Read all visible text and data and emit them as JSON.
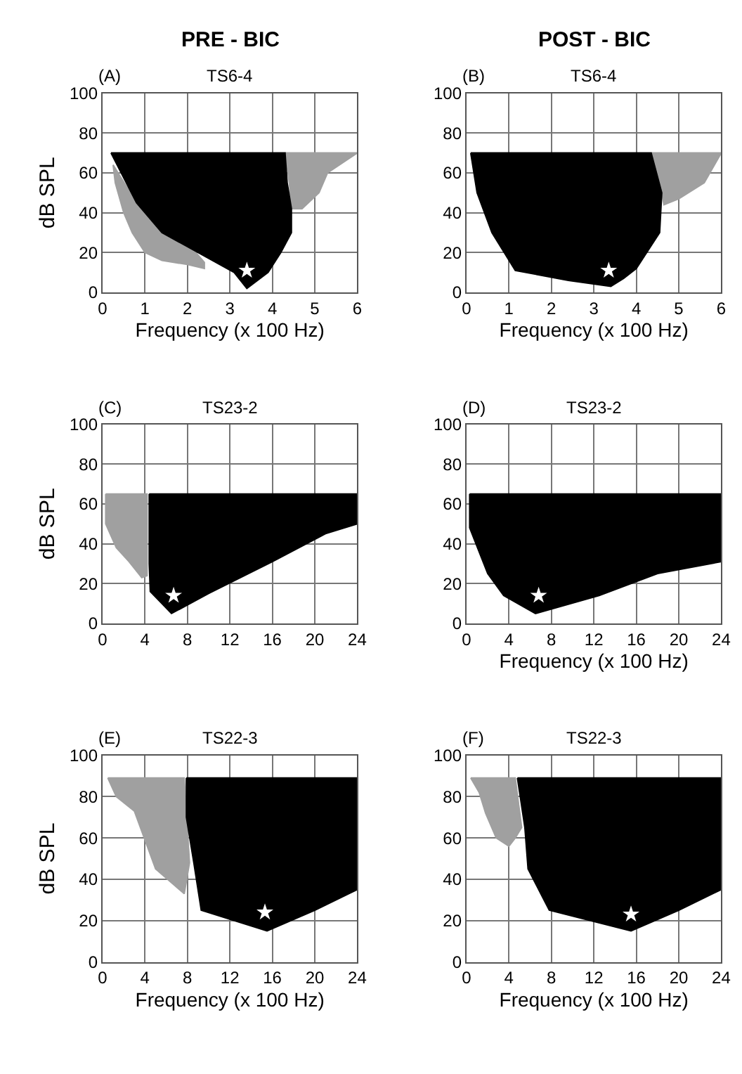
{
  "chart_data": [
    {
      "type": "area",
      "title": "TS6-4",
      "annotations": [
        "PRE - BIC",
        "(A)"
      ],
      "xlabel": "Frequency (x 100 Hz)",
      "ylabel": "dB SPL",
      "xlim": [
        0,
        6
      ],
      "xticks": [
        0,
        1,
        2,
        3,
        4,
        5,
        6
      ],
      "ylim": [
        0,
        100
      ],
      "yticks": [
        0,
        20,
        40,
        60,
        80,
        100
      ],
      "grid": true,
      "series": [
        {
          "color": "#a0a0a0",
          "x": [
            0.25,
            0.3,
            0.5,
            0.7,
            1.0,
            1.4,
            2.0,
            2.4,
            2.4,
            2.2,
            1.4,
            1.0,
            0.6,
            0.25
          ],
          "values": [
            64,
            55,
            40,
            30,
            20,
            16,
            14,
            12,
            15,
            20,
            30,
            40,
            52,
            64
          ]
        },
        {
          "color": "#a0a0a0",
          "x": [
            4.3,
            6.0,
            5.3,
            5.1,
            4.7,
            4.45,
            4.4,
            4.3
          ],
          "values": [
            70,
            70,
            60,
            50,
            42,
            42,
            55,
            70
          ]
        },
        {
          "color": "#000000",
          "x": [
            0.2,
            4.3,
            4.35,
            4.45,
            4.45,
            4.2,
            3.9,
            3.4,
            3.1,
            1.4,
            0.8,
            0.2
          ],
          "values": [
            70,
            70,
            55,
            42,
            30,
            20,
            10,
            2,
            10,
            30,
            45,
            70
          ]
        },
        {
          "type": "scatter",
          "marker": "star",
          "color": "#ffffff",
          "x": [
            3.4
          ],
          "values": [
            11
          ]
        }
      ]
    },
    {
      "type": "area",
      "title": "TS6-4",
      "annotations": [
        "POST - BIC",
        "(B)"
      ],
      "xlabel": "Frequency (x 100 Hz)",
      "xlim": [
        0,
        6
      ],
      "xticks": [
        0,
        1,
        2,
        3,
        4,
        5,
        6
      ],
      "ylim": [
        0,
        100
      ],
      "yticks": [
        0,
        20,
        40,
        60,
        80,
        100
      ],
      "grid": true,
      "series": [
        {
          "color": "#a0a0a0",
          "x": [
            4.35,
            6.0,
            5.6,
            5.0,
            4.65,
            4.6,
            4.35
          ],
          "values": [
            70,
            70,
            55,
            47,
            44,
            50,
            70
          ]
        },
        {
          "color": "#000000",
          "x": [
            0.1,
            4.35,
            4.6,
            4.55,
            4.0,
            3.7,
            3.4,
            2.4,
            1.15,
            0.6,
            0.25,
            0.1
          ],
          "values": [
            70,
            70,
            50,
            30,
            12,
            7,
            3,
            6,
            11,
            30,
            50,
            70
          ]
        },
        {
          "type": "scatter",
          "marker": "star",
          "color": "#ffffff",
          "x": [
            3.35
          ],
          "values": [
            11
          ]
        }
      ]
    },
    {
      "type": "area",
      "title": "TS23-2",
      "annotations": [
        "(C)"
      ],
      "ylabel": "dB SPL",
      "xlim": [
        0,
        24
      ],
      "xticks": [
        0,
        4,
        8,
        12,
        16,
        20,
        24
      ],
      "ylim": [
        0,
        100
      ],
      "yticks": [
        0,
        20,
        40,
        60,
        80,
        100
      ],
      "grid": true,
      "series": [
        {
          "color": "#a0a0a0",
          "x": [
            0.3,
            4.2,
            4.2,
            3.7,
            2.5,
            1.3,
            0.3,
            0.3
          ],
          "values": [
            65,
            65,
            24,
            23,
            31,
            38,
            50,
            65
          ]
        },
        {
          "color": "#000000",
          "x": [
            4.4,
            24,
            24,
            21,
            16,
            10,
            6.5,
            4.5,
            4.4,
            4.4
          ],
          "values": [
            65,
            65,
            50,
            45,
            31,
            15,
            5,
            16,
            30,
            65
          ]
        },
        {
          "type": "scatter",
          "marker": "star",
          "color": "#ffffff",
          "x": [
            6.7
          ],
          "values": [
            14
          ]
        }
      ]
    },
    {
      "type": "area",
      "title": "TS23-2",
      "annotations": [
        "(D)"
      ],
      "xlabel": "Frequency (x 100 Hz)",
      "xlim": [
        0,
        24
      ],
      "xticks": [
        0,
        4,
        8,
        12,
        16,
        20,
        24
      ],
      "ylim": [
        0,
        100
      ],
      "yticks": [
        0,
        20,
        40,
        60,
        80,
        100
      ],
      "grid": true,
      "series": [
        {
          "color": "#000000",
          "x": [
            0.3,
            24,
            24,
            18,
            12.5,
            6.5,
            3.5,
            2,
            0.3,
            0.3
          ],
          "values": [
            65,
            65,
            31,
            25,
            14,
            5,
            14,
            25,
            48,
            65
          ]
        },
        {
          "type": "scatter",
          "marker": "star",
          "color": "#ffffff",
          "x": [
            6.8
          ],
          "values": [
            14
          ]
        }
      ]
    },
    {
      "type": "area",
      "title": "TS22-3",
      "annotations": [
        "(E)"
      ],
      "xlabel": "Frequency (x 100 Hz)",
      "ylabel": "dB SPL",
      "xlim": [
        0,
        24
      ],
      "xticks": [
        0,
        4,
        8,
        12,
        16,
        20,
        24
      ],
      "ylim": [
        0,
        100
      ],
      "yticks": [
        0,
        20,
        40,
        60,
        80,
        100
      ],
      "grid": true,
      "series": [
        {
          "color": "#a0a0a0",
          "x": [
            0.5,
            7.7,
            8.2,
            7.7,
            5,
            3,
            1.3,
            0.5
          ],
          "values": [
            89,
            89,
            48,
            33,
            45,
            73,
            80,
            89
          ]
        },
        {
          "color": "#000000",
          "x": [
            7.9,
            24,
            24,
            20,
            15.5,
            9.3,
            8.6,
            7.9,
            7.9
          ],
          "values": [
            89,
            89,
            35,
            25,
            15,
            25,
            48,
            70,
            89
          ]
        },
        {
          "type": "scatter",
          "marker": "star",
          "color": "#ffffff",
          "x": [
            15.3
          ],
          "values": [
            24
          ]
        }
      ]
    },
    {
      "type": "area",
      "title": "TS22-3",
      "annotations": [
        "(F)"
      ],
      "xlabel": "Frequency (x 100 Hz)",
      "xlim": [
        0,
        24
      ],
      "xticks": [
        0,
        4,
        8,
        12,
        16,
        20,
        24
      ],
      "ylim": [
        0,
        100
      ],
      "yticks": [
        0,
        20,
        40,
        60,
        80,
        100
      ],
      "grid": true,
      "series": [
        {
          "color": "#a0a0a0",
          "x": [
            0.4,
            4.6,
            5.2,
            4.6,
            4.0,
            2.8,
            1.8,
            1.2,
            0.4
          ],
          "values": [
            89,
            89,
            65,
            60,
            56,
            60,
            72,
            82,
            89
          ]
        },
        {
          "color": "#000000",
          "x": [
            4.8,
            24,
            24,
            20,
            15.5,
            7.8,
            5.8,
            5.5,
            4.8
          ],
          "values": [
            89,
            89,
            35,
            25,
            15,
            25,
            45,
            65,
            89
          ]
        },
        {
          "type": "scatter",
          "marker": "star",
          "color": "#ffffff",
          "x": [
            15.5
          ],
          "values": [
            23
          ]
        }
      ]
    }
  ]
}
